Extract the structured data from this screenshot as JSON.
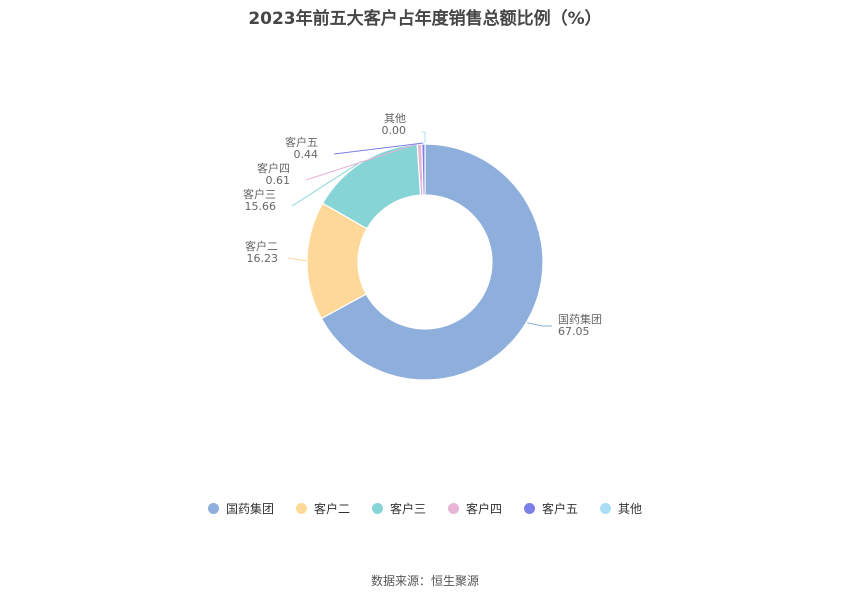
{
  "chart_data": {
    "type": "pie",
    "title": "2023年前五大客户占年度销售总额比例（%）",
    "categories": [
      "国药集团",
      "客户二",
      "客户三",
      "客户四",
      "客户五",
      "其他"
    ],
    "values": [
      67.05,
      16.23,
      15.66,
      0.61,
      0.44,
      0.0
    ],
    "value_labels": [
      "67.05",
      "16.23",
      "15.66",
      "0.61",
      "0.44",
      "0.00"
    ],
    "colors": [
      "#8eaedb",
      "#fdd898",
      "#86d4d6",
      "#e7b4d6",
      "#7b7fe6",
      "#a9dcf5"
    ],
    "legend_position": "bottom"
  },
  "source": "数据来源：恒生聚源"
}
